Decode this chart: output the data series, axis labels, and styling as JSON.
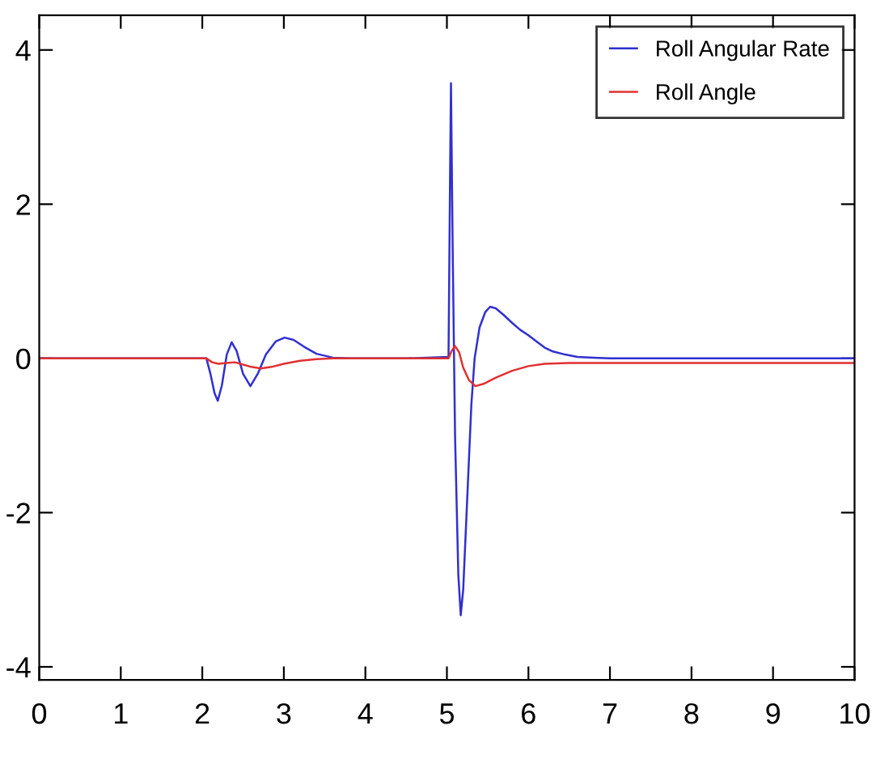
{
  "chart_data": {
    "type": "line",
    "xlim": [
      0,
      10
    ],
    "ylim": [
      -4.17,
      4.45
    ],
    "xticks": [
      0,
      1,
      2,
      3,
      4,
      5,
      6,
      7,
      8,
      9,
      10
    ],
    "yticks": [
      {
        "value": -4,
        "label": "-4"
      },
      {
        "value": -2,
        "label": "-2"
      },
      0,
      2,
      4
    ],
    "grid": false,
    "legend": "top right",
    "marker": "none",
    "line_style": "solid",
    "series": [
      {
        "name": "Roll Angular Rate",
        "color": "#3030d0",
        "x": [
          0,
          2.05,
          2.1,
          2.15,
          2.19,
          2.24,
          2.3,
          2.36,
          2.42,
          2.5,
          2.59,
          2.68,
          2.78,
          2.9,
          3.01,
          3.12,
          3.25,
          3.4,
          3.6,
          3.8,
          4.5,
          5.02,
          5.04,
          5.05,
          5.07,
          5.1,
          5.14,
          5.17,
          5.2,
          5.25,
          5.3,
          5.34,
          5.4,
          5.47,
          5.53,
          5.6,
          5.7,
          5.8,
          5.9,
          6.0,
          6.1,
          6.2,
          6.3,
          6.45,
          6.6,
          6.8,
          7,
          8,
          9,
          10
        ],
        "values": [
          0,
          0,
          -0.2,
          -0.45,
          -0.55,
          -0.35,
          0.05,
          0.21,
          0.1,
          -0.2,
          -0.36,
          -0.2,
          0.05,
          0.22,
          0.27,
          0.24,
          0.15,
          0.06,
          0.01,
          0,
          0,
          0.02,
          2.5,
          3.57,
          1.5,
          -1.0,
          -2.8,
          -3.33,
          -3.0,
          -1.8,
          -0.6,
          0,
          0.4,
          0.6,
          0.67,
          0.65,
          0.56,
          0.46,
          0.37,
          0.3,
          0.22,
          0.14,
          0.09,
          0.05,
          0.02,
          0.01,
          0,
          0,
          0,
          0
        ]
      },
      {
        "name": "Roll Angle",
        "color": "#e03030",
        "x": [
          0,
          2.05,
          2.12,
          2.2,
          2.3,
          2.4,
          2.5,
          2.6,
          2.72,
          2.85,
          3.0,
          3.2,
          3.4,
          3.6,
          4.0,
          5.02,
          5.06,
          5.1,
          5.15,
          5.2,
          5.27,
          5.35,
          5.45,
          5.6,
          5.8,
          6.0,
          6.2,
          6.5,
          7,
          8,
          9,
          10
        ],
        "values": [
          0,
          0,
          -0.05,
          -0.07,
          -0.06,
          -0.05,
          -0.08,
          -0.11,
          -0.13,
          -0.11,
          -0.07,
          -0.03,
          -0.01,
          0,
          0,
          0,
          0.1,
          0.16,
          0.08,
          -0.12,
          -0.28,
          -0.36,
          -0.33,
          -0.25,
          -0.16,
          -0.1,
          -0.07,
          -0.06,
          -0.06,
          -0.06,
          -0.06,
          -0.06
        ]
      }
    ]
  }
}
